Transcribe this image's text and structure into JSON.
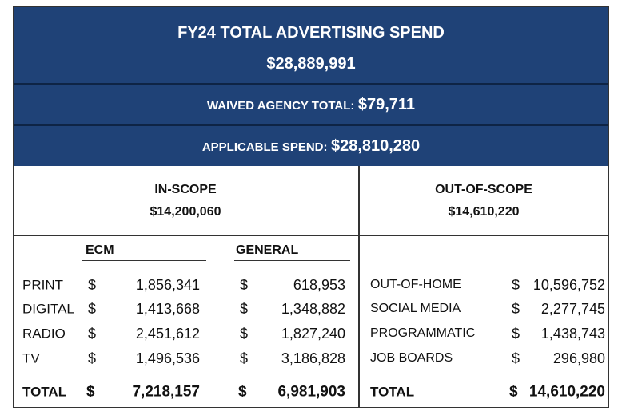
{
  "header": {
    "title": "FY24 TOTAL ADVERTISING SPEND",
    "total": "$28,889,991"
  },
  "waived": {
    "label": "WAIVED AGENCY TOTAL:",
    "value": "$79,711"
  },
  "applicable": {
    "label": "APPLICABLE SPEND:",
    "value": "$28,810,280"
  },
  "currency": "$",
  "in_scope": {
    "title": "IN-SCOPE",
    "total": "$14,200,060",
    "columns": [
      "ECM",
      "GENERAL"
    ],
    "rows": [
      [
        "PRINT",
        "1,856,341",
        "618,953"
      ],
      [
        "DIGITAL",
        "1,413,668",
        "1,348,882"
      ],
      [
        "RADIO",
        "2,451,612",
        "1,827,240"
      ],
      [
        "TV",
        "1,496,536",
        "3,186,828"
      ]
    ],
    "total_row": [
      "TOTAL",
      "7,218,157",
      "6,981,903"
    ]
  },
  "out_of_scope": {
    "title": "OUT-OF-SCOPE",
    "total": "$14,610,220",
    "rows": [
      [
        "OUT-OF-HOME",
        "10,596,752"
      ],
      [
        "SOCIAL MEDIA",
        "2,277,745"
      ],
      [
        "PROGRAMMATIC",
        "1,438,743"
      ],
      [
        "JOB BOARDS",
        "296,980"
      ]
    ],
    "total_row": [
      "TOTAL",
      "14,610,220"
    ]
  }
}
